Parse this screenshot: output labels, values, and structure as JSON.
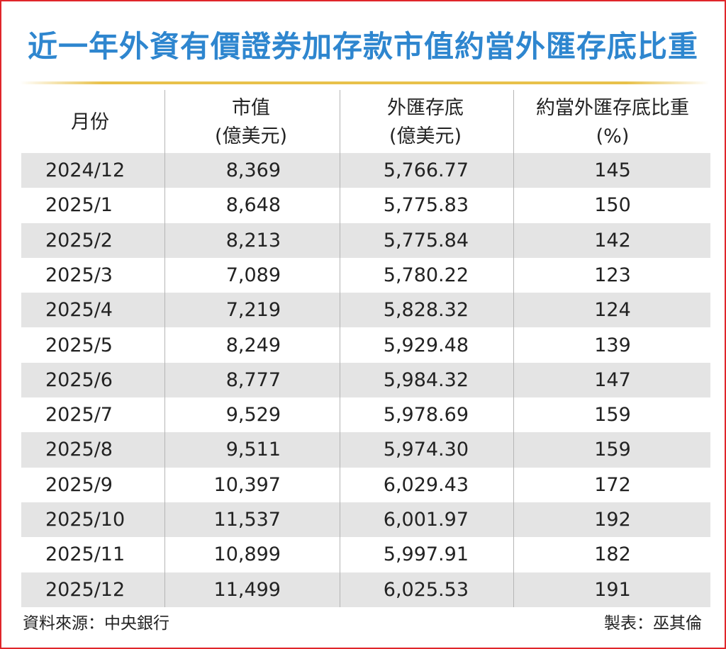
{
  "title": "近一年外資有價證券加存款市值約當外匯存底比重",
  "table": {
    "header": [
      [
        "月份"
      ],
      [
        "市值",
        "(億美元)"
      ],
      [
        "外匯存底",
        "(億美元)"
      ],
      [
        "約當外匯存底比重",
        "(%)"
      ]
    ],
    "rows": [
      [
        "2024/12",
        "8,369",
        "5,766.77",
        "145"
      ],
      [
        "2025/1",
        "8,648",
        "5,775.83",
        "150"
      ],
      [
        "2025/2",
        "8,213",
        "5,775.84",
        "142"
      ],
      [
        "2025/3",
        "7,089",
        "5,780.22",
        "123"
      ],
      [
        "2025/4",
        "7,219",
        "5,828.32",
        "124"
      ],
      [
        "2025/5",
        "8,249",
        "5,929.48",
        "139"
      ],
      [
        "2025/6",
        "8,777",
        "5,984.32",
        "147"
      ],
      [
        "2025/7",
        "9,529",
        "5,978.69",
        "159"
      ],
      [
        "2025/8",
        "9,511",
        "5,974.30",
        "159"
      ],
      [
        "2025/9",
        "10,397",
        "6,029.43",
        "172"
      ],
      [
        "2025/10",
        "11,537",
        "6,001.97",
        "192"
      ],
      [
        "2025/11",
        "10,899",
        "5,997.91",
        "182"
      ],
      [
        "2025/12",
        "11,499",
        "6,025.53",
        "191"
      ]
    ]
  },
  "footer": {
    "source": "資料來源：中央銀行",
    "author": "製表：巫其倫"
  }
}
